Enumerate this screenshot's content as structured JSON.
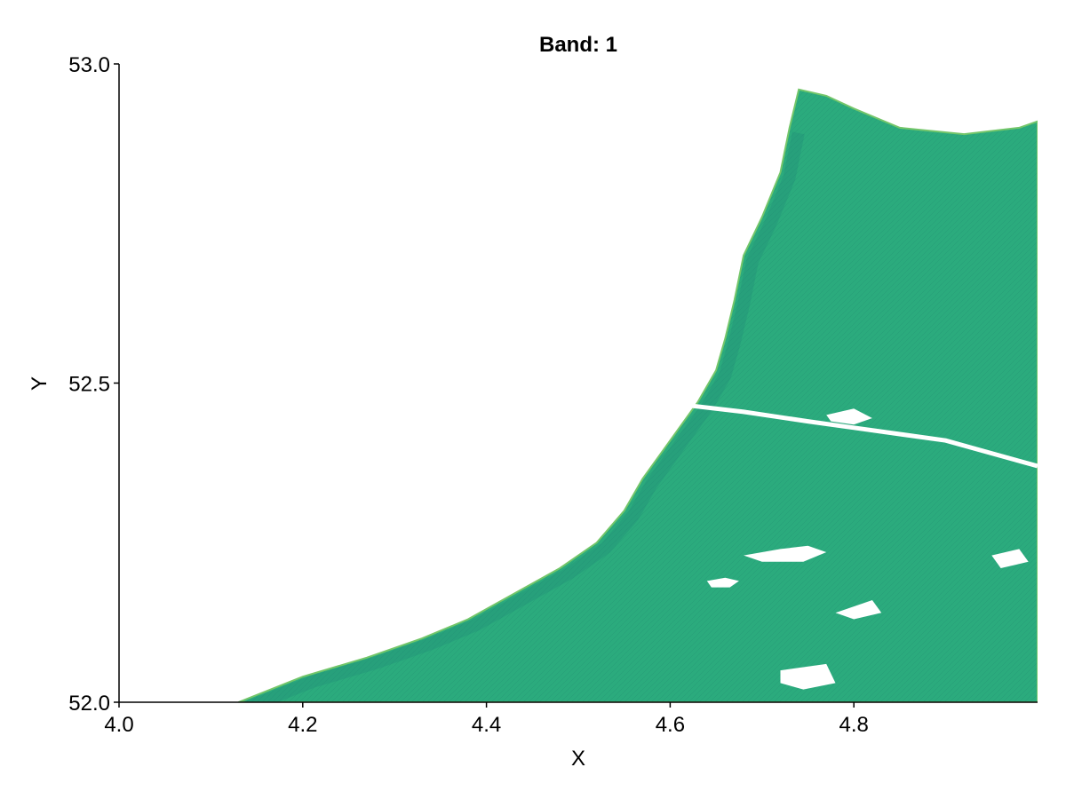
{
  "chart_data": {
    "type": "heatmap",
    "title": "Band: 1",
    "xlabel": "X",
    "ylabel": "Y",
    "xlim": [
      4.0,
      5.0
    ],
    "ylim": [
      52.0,
      53.0
    ],
    "x_ticks": [
      {
        "value": 4.0,
        "label": "4.0"
      },
      {
        "value": 4.2,
        "label": "4.2"
      },
      {
        "value": 4.4,
        "label": "4.4"
      },
      {
        "value": 4.6,
        "label": "4.6"
      },
      {
        "value": 4.8,
        "label": "4.8"
      }
    ],
    "y_ticks": [
      {
        "value": 52.0,
        "label": "52.0"
      },
      {
        "value": 52.5,
        "label": "52.5"
      },
      {
        "value": 53.0,
        "label": "53.0"
      }
    ],
    "grid": false,
    "colors": {
      "land": "#2bab7d",
      "relief_light": "#74c66a",
      "relief_dark": "#1f8d78",
      "water": "#ffffff"
    },
    "coastline": [
      [
        4.13,
        52.0
      ],
      [
        4.2,
        52.04
      ],
      [
        4.27,
        52.07
      ],
      [
        4.33,
        52.1
      ],
      [
        4.38,
        52.13
      ],
      [
        4.43,
        52.17
      ],
      [
        4.48,
        52.21
      ],
      [
        4.52,
        52.25
      ],
      [
        4.55,
        52.3
      ],
      [
        4.57,
        52.35
      ],
      [
        4.59,
        52.39
      ],
      [
        4.61,
        52.43
      ],
      [
        4.63,
        52.47
      ],
      [
        4.65,
        52.52
      ],
      [
        4.66,
        52.57
      ],
      [
        4.67,
        52.63
      ],
      [
        4.68,
        52.7
      ],
      [
        4.7,
        52.76
      ],
      [
        4.72,
        52.83
      ],
      [
        4.73,
        52.9
      ],
      [
        4.74,
        52.96
      ],
      [
        4.77,
        52.95
      ],
      [
        4.8,
        52.93
      ],
      [
        4.85,
        52.9
      ],
      [
        4.92,
        52.89
      ],
      [
        4.98,
        52.9
      ],
      [
        5.0,
        52.91
      ],
      [
        5.0,
        52.0
      ]
    ],
    "water_bodies": [
      {
        "name": "lake",
        "points": [
          [
            4.68,
            52.23
          ],
          [
            4.72,
            52.24
          ],
          [
            4.75,
            52.245
          ],
          [
            4.77,
            52.235
          ],
          [
            4.745,
            52.22
          ],
          [
            4.7,
            52.22
          ]
        ]
      },
      {
        "name": "lake",
        "points": [
          [
            4.64,
            52.19
          ],
          [
            4.66,
            52.195
          ],
          [
            4.675,
            52.19
          ],
          [
            4.665,
            52.18
          ],
          [
            4.645,
            52.18
          ]
        ]
      },
      {
        "name": "lake",
        "points": [
          [
            4.95,
            52.23
          ],
          [
            4.98,
            52.24
          ],
          [
            4.99,
            52.22
          ],
          [
            4.96,
            52.21
          ]
        ]
      },
      {
        "name": "lake",
        "points": [
          [
            4.72,
            52.05
          ],
          [
            4.77,
            52.06
          ],
          [
            4.78,
            52.03
          ],
          [
            4.745,
            52.02
          ],
          [
            4.72,
            52.03
          ]
        ]
      },
      {
        "name": "lake",
        "points": [
          [
            4.77,
            52.45
          ],
          [
            4.8,
            52.46
          ],
          [
            4.82,
            52.445
          ],
          [
            4.8,
            52.435
          ],
          [
            4.775,
            52.44
          ]
        ]
      },
      {
        "name": "lake",
        "points": [
          [
            4.78,
            52.14
          ],
          [
            4.82,
            52.16
          ],
          [
            4.83,
            52.14
          ],
          [
            4.8,
            52.13
          ]
        ]
      }
    ],
    "canal": [
      [
        4.57,
        52.47
      ],
      [
        4.62,
        52.465
      ],
      [
        4.68,
        52.455
      ],
      [
        4.75,
        52.44
      ],
      [
        4.8,
        52.43
      ],
      [
        4.85,
        52.42
      ],
      [
        4.9,
        52.41
      ],
      [
        4.95,
        52.39
      ],
      [
        5.0,
        52.37
      ]
    ]
  }
}
